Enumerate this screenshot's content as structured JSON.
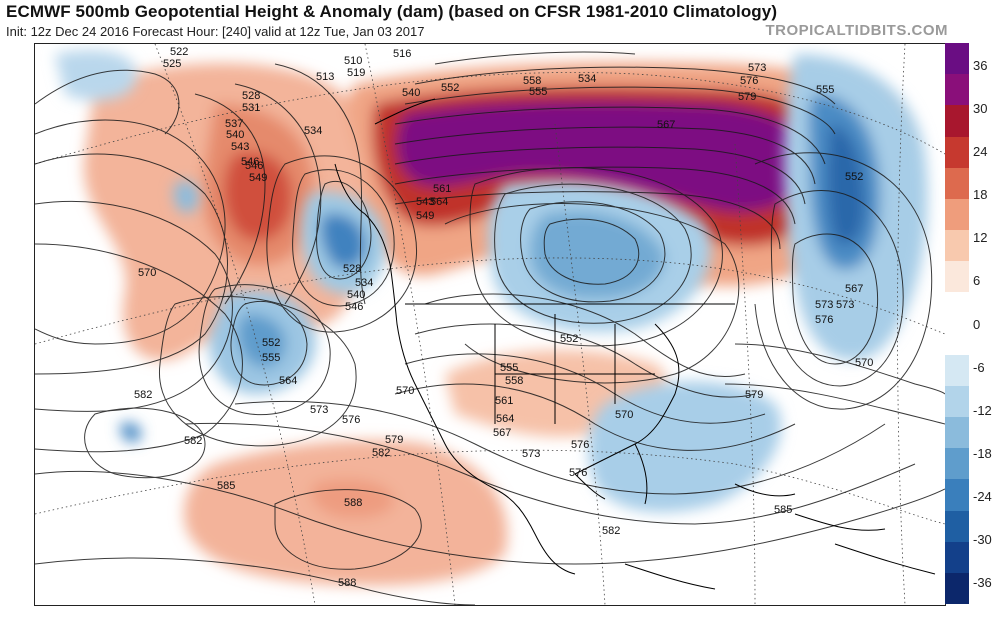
{
  "header": {
    "title": "ECMWF 500mb Geopotential Height & Anomaly (dam) (based on CFSR 1981-2010 Climatology)",
    "subtitle": "Init: 12z Dec 24 2016   Forecast Hour: [240]   valid at 12z Tue, Jan 03 2017",
    "brand": "TROPICALTIDBITS.COM"
  },
  "colorbar": {
    "ticks": [
      "36",
      "30",
      "24",
      "18",
      "12",
      "6",
      "0",
      "-6",
      "-12",
      "-18",
      "-24",
      "-30",
      "-36"
    ],
    "colors": [
      "#6a0d83",
      "#8a0f7a",
      "#a8172e",
      "#c6392f",
      "#dd6a4e",
      "#ef9d7c",
      "#f8c9ae",
      "#fbe8dc",
      "#ffffff",
      "#ffffff",
      "#d5e8f3",
      "#b2d4ea",
      "#8bbbdc",
      "#5f9dcc",
      "#3a7fbc",
      "#1f5fa3",
      "#13408a",
      "#0c276b"
    ]
  },
  "contour_labels": [
    "522",
    "525",
    "516",
    "510",
    "519",
    "513",
    "528",
    "531",
    "537",
    "540",
    "534",
    "543",
    "546",
    "549",
    "540",
    "552",
    "555",
    "558",
    "534",
    "576",
    "573",
    "579",
    "567",
    "555",
    "552",
    "561",
    "564",
    "570",
    "567",
    "573",
    "576",
    "543",
    "549",
    "546",
    "552",
    "528",
    "534",
    "540",
    "546",
    "552",
    "555",
    "564",
    "555",
    "558",
    "561",
    "564",
    "567",
    "570",
    "573",
    "576",
    "579",
    "573",
    "576",
    "570",
    "582",
    "582",
    "582",
    "585",
    "588",
    "588",
    "585",
    "582",
    "579",
    "576",
    "573",
    "570"
  ]
}
